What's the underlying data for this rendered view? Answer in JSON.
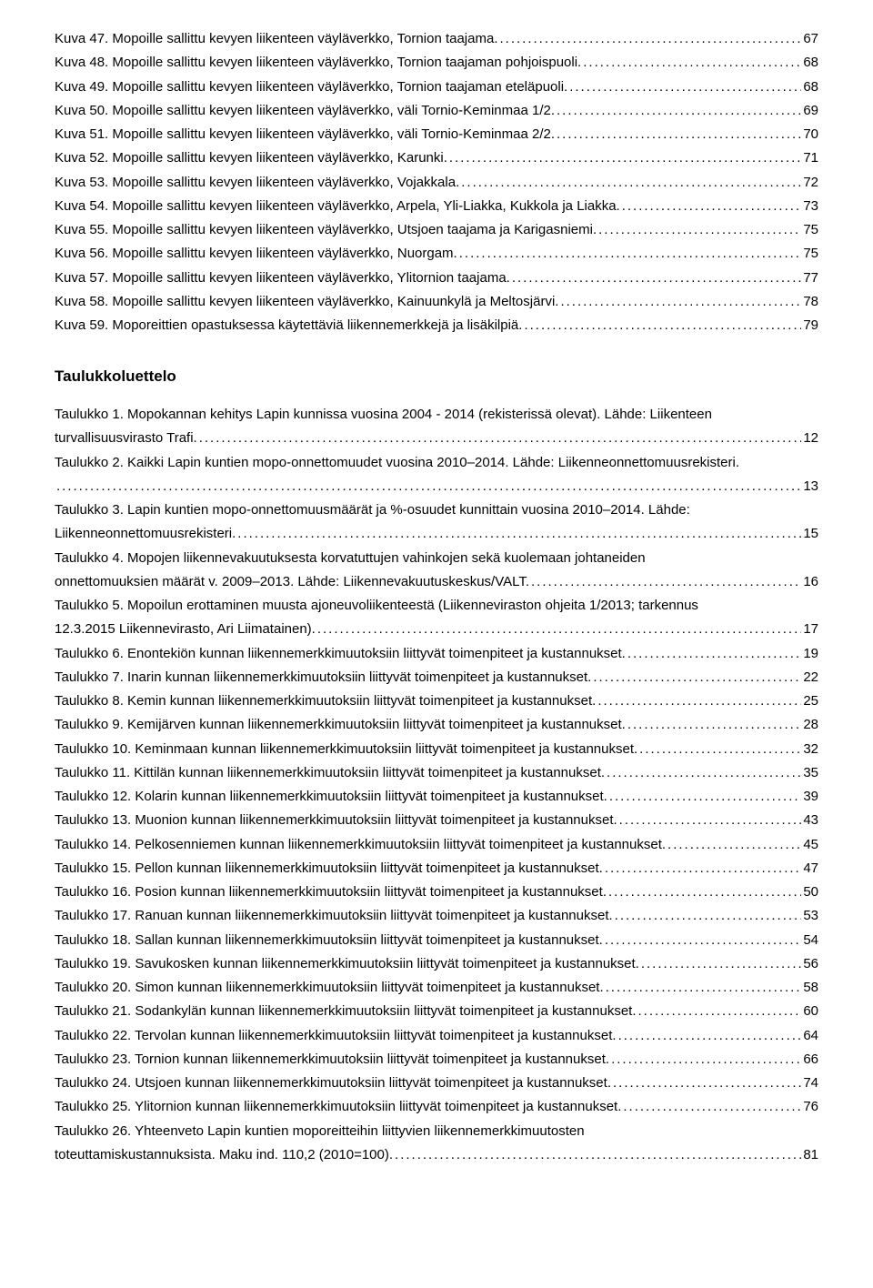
{
  "kuvat": [
    {
      "label": "Kuva 47. Mopoille sallittu kevyen liikenteen väyläverkko, Tornion taajama.",
      "page": "67"
    },
    {
      "label": "Kuva 48. Mopoille sallittu kevyen liikenteen väyläverkko, Tornion taajaman pohjoispuoli.",
      "page": "68"
    },
    {
      "label": "Kuva 49. Mopoille sallittu kevyen liikenteen väyläverkko, Tornion taajaman eteläpuoli.",
      "page": "68"
    },
    {
      "label": "Kuva 50. Mopoille sallittu kevyen liikenteen väyläverkko, väli Tornio-Keminmaa 1/2.",
      "page": "69"
    },
    {
      "label": "Kuva 51. Mopoille sallittu kevyen liikenteen väyläverkko, väli Tornio-Keminmaa 2/2.",
      "page": "70"
    },
    {
      "label": "Kuva 52. Mopoille sallittu kevyen liikenteen väyläverkko, Karunki.",
      "page": "71"
    },
    {
      "label": "Kuva 53. Mopoille sallittu kevyen liikenteen väyläverkko, Vojakkala.",
      "page": "72"
    },
    {
      "label": "Kuva 54. Mopoille sallittu kevyen liikenteen väyläverkko, Arpela, Yli-Liakka, Kukkola ja Liakka.",
      "page": "73"
    },
    {
      "label": "Kuva 55. Mopoille sallittu kevyen liikenteen väyläverkko, Utsjoen taajama ja Karigasniemi.",
      "page": "75"
    },
    {
      "label": "Kuva 56. Mopoille sallittu kevyen liikenteen väyläverkko, Nuorgam.",
      "page": "75"
    },
    {
      "label": "Kuva 57. Mopoille sallittu kevyen liikenteen väyläverkko, Ylitornion taajama.",
      "page": "77"
    },
    {
      "label": "Kuva 58. Mopoille sallittu kevyen liikenteen väyläverkko, Kainuunkylä ja Meltosjärvi.",
      "page": "78"
    },
    {
      "label": "Kuva 59. Moporeittien opastuksessa käytettäviä liikennemerkkejä ja lisäkilpiä.",
      "page": "79"
    }
  ],
  "section_heading": "Taulukkoluettelo",
  "taulukot": [
    {
      "line1": "Taulukko 1. Mopokannan kehitys Lapin kunnissa vuosina 2004 - 2014 (rekisterissä olevat). Lähde: Liikenteen",
      "label": "turvallisuusvirasto Trafi.",
      "page": "12"
    },
    {
      "line1": "Taulukko 2. Kaikki Lapin kuntien mopo-onnettomuudet vuosina 2010–2014. Lähde: Liikenneonnettomuusrekisteri.",
      "label": "",
      "page": "13"
    },
    {
      "line1": "Taulukko 3. Lapin kuntien mopo-onnettomuusmäärät ja %-osuudet kunnittain vuosina 2010–2014. Lähde:",
      "label": "Liikenneonnettomuusrekisteri.",
      "page": "15"
    },
    {
      "line1": "Taulukko 4. Mopojen liikennevakuutuksesta korvatuttujen vahinkojen sekä kuolemaan johtaneiden",
      "label": "onnettomuuksien määrät v. 2009–2013. Lähde: Liikennevakuutuskeskus/VALT.",
      "page": "16"
    },
    {
      "line1": "Taulukko 5. Mopoilun erottaminen muusta ajoneuvoliikenteestä (Liikenneviraston ohjeita 1/2013; tarkennus",
      "label": "12.3.2015 Liikennevirasto, Ari Liimatainen).",
      "page": "17"
    },
    {
      "label": "Taulukko 6. Enontekiön kunnan liikennemerkkimuutoksiin liittyvät toimenpiteet ja kustannukset.",
      "page": "19"
    },
    {
      "label": "Taulukko 7. Inarin kunnan liikennemerkkimuutoksiin liittyvät toimenpiteet ja kustannukset.",
      "page": "22"
    },
    {
      "label": "Taulukko 8. Kemin kunnan liikennemerkkimuutoksiin liittyvät toimenpiteet ja kustannukset.",
      "page": "25"
    },
    {
      "label": "Taulukko 9. Kemijärven kunnan liikennemerkkimuutoksiin liittyvät toimenpiteet ja kustannukset.",
      "page": "28"
    },
    {
      "label": "Taulukko 10. Keminmaan kunnan liikennemerkkimuutoksiin liittyvät toimenpiteet ja kustannukset.",
      "page": "32"
    },
    {
      "label": "Taulukko 11. Kittilän kunnan liikennemerkkimuutoksiin liittyvät toimenpiteet ja kustannukset.",
      "page": "35"
    },
    {
      "label": "Taulukko 12. Kolarin kunnan liikennemerkkimuutoksiin liittyvät toimenpiteet ja kustannukset.",
      "page": "39"
    },
    {
      "label": "Taulukko 13. Muonion kunnan liikennemerkkimuutoksiin liittyvät toimenpiteet ja kustannukset.",
      "page": "43"
    },
    {
      "label": "Taulukko 14. Pelkosenniemen kunnan liikennemerkkimuutoksiin liittyvät toimenpiteet ja kustannukset.",
      "page": "45"
    },
    {
      "label": "Taulukko 15. Pellon kunnan liikennemerkkimuutoksiin liittyvät toimenpiteet ja kustannukset.",
      "page": "47"
    },
    {
      "label": "Taulukko 16. Posion kunnan liikennemerkkimuutoksiin liittyvät toimenpiteet ja kustannukset.",
      "page": "50"
    },
    {
      "label": "Taulukko 17. Ranuan kunnan liikennemerkkimuutoksiin liittyvät toimenpiteet ja kustannukset.",
      "page": "53"
    },
    {
      "label": "Taulukko 18. Sallan kunnan liikennemerkkimuutoksiin liittyvät toimenpiteet ja kustannukset.",
      "page": "54"
    },
    {
      "label": "Taulukko 19. Savukosken kunnan liikennemerkkimuutoksiin liittyvät toimenpiteet ja kustannukset.",
      "page": "56"
    },
    {
      "label": "Taulukko 20. Simon kunnan liikennemerkkimuutoksiin liittyvät toimenpiteet ja kustannukset.",
      "page": "58"
    },
    {
      "label": "Taulukko 21. Sodankylän kunnan liikennemerkkimuutoksiin liittyvät toimenpiteet ja kustannukset.",
      "page": "60"
    },
    {
      "label": "Taulukko 22. Tervolan kunnan liikennemerkkimuutoksiin liittyvät toimenpiteet ja kustannukset.",
      "page": "64"
    },
    {
      "label": "Taulukko 23. Tornion kunnan liikennemerkkimuutoksiin liittyvät toimenpiteet ja kustannukset.",
      "page": "66"
    },
    {
      "label": "Taulukko 24. Utsjoen kunnan liikennemerkkimuutoksiin liittyvät toimenpiteet ja kustannukset.",
      "page": "74"
    },
    {
      "label": "Taulukko 25. Ylitornion kunnan liikennemerkkimuutoksiin liittyvät toimenpiteet ja kustannukset.",
      "page": "76"
    },
    {
      "line1": "Taulukko 26. Yhteenveto  Lapin kuntien moporeitteihin liittyvien liikennemerkkimuutosten",
      "label": "toteuttamiskustannuksista. Maku ind. 110,2 (2010=100).",
      "page": "81"
    }
  ]
}
